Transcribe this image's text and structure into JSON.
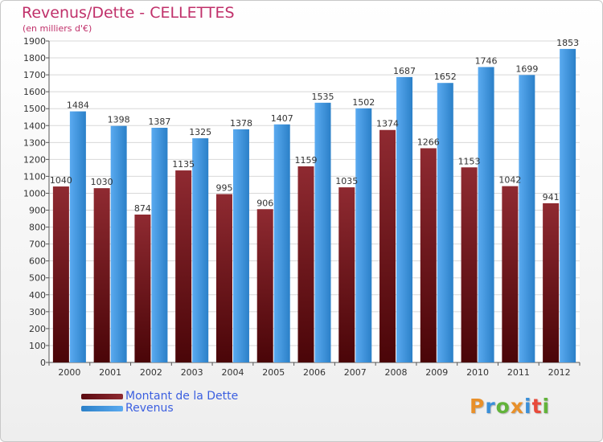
{
  "header": {
    "title": "Revenus/Dette - CELLETTES",
    "subtitle": "(en milliers d'€)"
  },
  "legend": {
    "dette_label": "Montant de la Dette",
    "revenus_label": "Revenus"
  },
  "logo": {
    "text": "Proxiti",
    "letters": [
      "P",
      "r",
      "o",
      "x",
      "i",
      "t",
      "i"
    ],
    "colors": [
      "#e8902a",
      "#3a8fd8",
      "#62b33a",
      "#e8902a",
      "#3a8fd8",
      "#e84a3a",
      "#62b33a"
    ]
  },
  "colors": {
    "dette": "#7a1a20",
    "revenus": "#3a93dc",
    "title": "#c0306a",
    "legend_text": "#3b5fe0"
  },
  "chart_data": {
    "type": "bar",
    "title": "Revenus/Dette - CELLETTES",
    "subtitle": "(en milliers d'€)",
    "xlabel": "",
    "ylabel": "",
    "ylim": [
      0,
      1900
    ],
    "ytick_step": 100,
    "grid": true,
    "legend_position": "bottom-left",
    "categories": [
      "2000",
      "2001",
      "2002",
      "2003",
      "2004",
      "2005",
      "2006",
      "2007",
      "2008",
      "2009",
      "2010",
      "2011",
      "2012"
    ],
    "series": [
      {
        "name": "Montant de la Dette",
        "color": "#7a1a20",
        "values": [
          1040,
          1030,
          874,
          1135,
          995,
          906,
          1159,
          1035,
          1374,
          1266,
          1153,
          1042,
          941
        ]
      },
      {
        "name": "Revenus",
        "color": "#3a93dc",
        "values": [
          1484,
          1398,
          1387,
          1325,
          1378,
          1407,
          1535,
          1502,
          1687,
          1652,
          1746,
          1699,
          1853
        ]
      }
    ]
  }
}
